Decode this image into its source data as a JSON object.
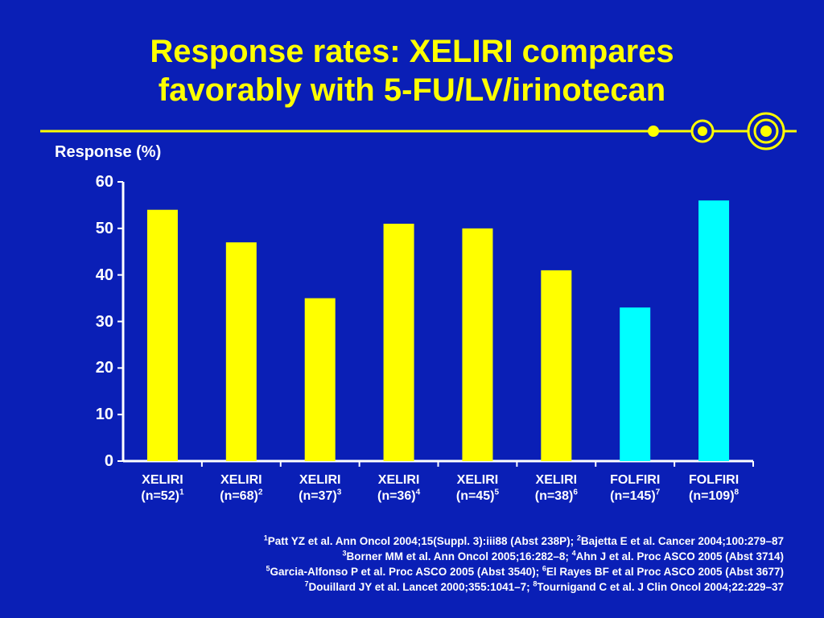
{
  "title_line1": "Response rates: XELIRI compares",
  "title_line2": "favorably with 5-FU/LV/irinotecan",
  "colors": {
    "background": "#0a1fb6",
    "title": "#ffff00",
    "xeliri": "#ffff00",
    "folfiri": "#00ffff",
    "text": "#ffffff"
  },
  "chart_data": {
    "type": "bar",
    "ylabel": "Response (%)",
    "ylim": [
      0,
      60
    ],
    "yticks": [
      0,
      10,
      20,
      30,
      40,
      50,
      60
    ],
    "grid": false,
    "bars": [
      {
        "label": "XELIRI",
        "n": "(n=52)",
        "ref": "1",
        "value": 54,
        "color": "#ffff00"
      },
      {
        "label": "XELIRI",
        "n": "(n=68)",
        "ref": "2",
        "value": 47,
        "color": "#ffff00"
      },
      {
        "label": "XELIRI",
        "n": "(n=37)",
        "ref": "3",
        "value": 35,
        "color": "#ffff00"
      },
      {
        "label": "XELIRI",
        "n": "(n=36)",
        "ref": "4",
        "value": 51,
        "color": "#ffff00"
      },
      {
        "label": "XELIRI",
        "n": "(n=45)",
        "ref": "5",
        "value": 50,
        "color": "#ffff00"
      },
      {
        "label": "XELIRI",
        "n": "(n=38)",
        "ref": "6",
        "value": 41,
        "color": "#ffff00"
      },
      {
        "label": "FOLFIRI",
        "n": "(n=145)",
        "ref": "7",
        "value": 33,
        "color": "#00ffff"
      },
      {
        "label": "FOLFIRI",
        "n": "(n=109)",
        "ref": "8",
        "value": 56,
        "color": "#00ffff"
      }
    ]
  },
  "references": [
    [
      {
        "sup": "1",
        "text": "Patt YZ et al. Ann Oncol 2004;15(Suppl. 3):iii88 (Abst 238P); "
      },
      {
        "sup": "2",
        "text": "Bajetta E et al. Cancer 2004;100:279–87"
      }
    ],
    [
      {
        "sup": "3",
        "text": "Borner MM et al. Ann Oncol 2005;16:282–8; "
      },
      {
        "sup": "4",
        "text": "Ahn J et al. Proc ASCO 2005 (Abst 3714)"
      }
    ],
    [
      {
        "sup": "5",
        "text": "Garcia-Alfonso P et al. Proc ASCO 2005 (Abst 3540); "
      },
      {
        "sup": "6",
        "text": "El Rayes BF et al Proc ASCO 2005 (Abst 3677)"
      }
    ],
    [
      {
        "sup": "7",
        "text": "Douillard JY et al. Lancet 2000;355:1041–7; "
      },
      {
        "sup": "8",
        "text": "Tournigand C et al. J Clin Oncol 2004;22:229–37"
      }
    ]
  ]
}
